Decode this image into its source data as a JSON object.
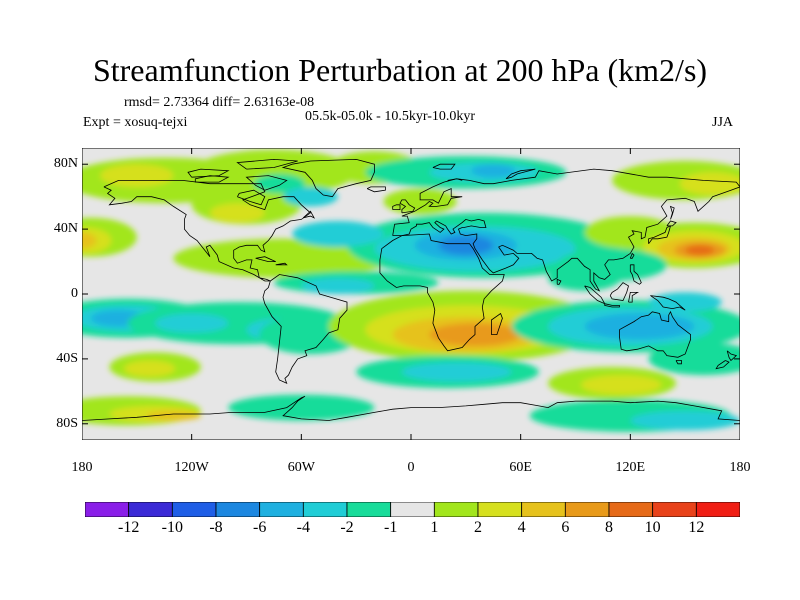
{
  "header": {
    "title": "Streamfunction Perturbation at 200 hPa (km2/s)",
    "stats": "rmsd= 2.73364 diff= 2.63163e-08",
    "period": "05.5k-05.0k - 10.5kyr-10.0kyr",
    "experiment": "Expt = xosuq-tejxi",
    "season": "JJA"
  },
  "axes": {
    "lat_labels": [
      "80N",
      "40N",
      "0",
      "40S",
      "80S"
    ],
    "lon_labels": [
      "180",
      "120W",
      "60W",
      "0",
      "60E",
      "120E",
      "180"
    ]
  },
  "colorbar": {
    "labels": [
      "-12",
      "-10",
      "-8",
      "-6",
      "-4",
      "-2",
      "-1",
      "1",
      "2",
      "4",
      "6",
      "8",
      "10",
      "12"
    ],
    "colors": [
      "#8a1ee8",
      "#3b2ad6",
      "#1f5ee6",
      "#1c87e0",
      "#1fb0e0",
      "#20cdd6",
      "#18dc9a",
      "#e6e6e6",
      "#a2e61c",
      "#d6e01e",
      "#e6c21c",
      "#e89a1a",
      "#e66a18",
      "#e8421a",
      "#f01e14"
    ]
  },
  "chart_data": {
    "type": "contour-map",
    "title": "Streamfunction Perturbation at 200 hPa (km2/s)",
    "units": "km2/s",
    "levels": [
      -12,
      -10,
      -8,
      -6,
      -4,
      -2,
      -1,
      1,
      2,
      4,
      6,
      8,
      10,
      12
    ],
    "lon_range": [
      -180,
      180
    ],
    "lat_range": [
      -90,
      90
    ],
    "features": [
      {
        "name": "west-pacific-high",
        "lon": 160,
        "lat": 28,
        "value": 9
      },
      {
        "name": "southern-africa-high",
        "lon": 35,
        "lat": -25,
        "value": 7
      },
      {
        "name": "north-atlantic-positive",
        "lon": -90,
        "lat": 45,
        "value": 4
      },
      {
        "name": "north-africa-low",
        "lon": 30,
        "lat": 30,
        "value": -6
      },
      {
        "name": "south-pacific-low",
        "lon": -155,
        "lat": -15,
        "value": -5
      },
      {
        "name": "australia-low",
        "lon": 130,
        "lat": -15,
        "value": -5
      }
    ]
  }
}
